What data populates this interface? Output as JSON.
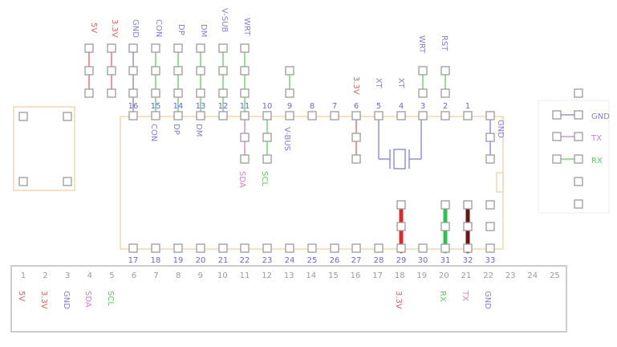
{
  "colors": {
    "outline": "#f2cfa8",
    "frame": "#bfbfbf",
    "pad": "#9b9b9b",
    "number": "#6a6ad0",
    "header_number": "#9a9a9a",
    "red": "#e06060",
    "blue": "#8080dc",
    "green": "#5ccf5c",
    "purple": "#cf7fcf",
    "jumper_red": "#e02828",
    "jumper_green": "#2ec24a",
    "jumper_dark": "#6a1414"
  },
  "top_labels": [
    {
      "label": "5V",
      "color": "red"
    },
    {
      "label": "3.3V",
      "color": "red"
    },
    {
      "label": "GND",
      "color": "blue"
    },
    {
      "label": "CON",
      "color": "blue"
    },
    {
      "label": "DP",
      "color": "blue"
    },
    {
      "label": "DM",
      "color": "blue"
    },
    {
      "label": "V-SUB",
      "color": "blue"
    },
    {
      "label": "WRT",
      "color": "blue"
    }
  ],
  "top_pin_numbers": [
    "16",
    "15",
    "14",
    "13",
    "12",
    "11",
    "10",
    "9",
    "8",
    "7",
    "6",
    "5",
    "4",
    "3",
    "2",
    "1"
  ],
  "top_right_labels": [
    {
      "label": "3.3V",
      "color": "red"
    },
    {
      "label": "XT",
      "color": "blue"
    },
    {
      "label": "XT",
      "color": "blue"
    },
    {
      "label": "WRT",
      "color": "blue"
    },
    {
      "label": "RST",
      "color": "blue"
    }
  ],
  "top_inner_labels": [
    {
      "label": "CON",
      "color": "blue"
    },
    {
      "label": "DP",
      "color": "blue"
    },
    {
      "label": "DM",
      "color": "blue"
    },
    {
      "label": "SDA",
      "color": "purple"
    },
    {
      "label": "SCL",
      "color": "green"
    },
    {
      "label": "V-BUS",
      "color": "blue"
    }
  ],
  "right_inner_label": {
    "label": "GND",
    "color": "blue"
  },
  "connector_labels": [
    {
      "label": "GND",
      "color": "blue"
    },
    {
      "label": "TX",
      "color": "purple"
    },
    {
      "label": "RX",
      "color": "green"
    }
  ],
  "bottom_pin_numbers": [
    "17",
    "18",
    "19",
    "20",
    "21",
    "22",
    "23",
    "24",
    "25",
    "26",
    "27",
    "28",
    "29",
    "30",
    "31",
    "32",
    "33"
  ],
  "header_numbers": [
    "1",
    "2",
    "3",
    "4",
    "5",
    "6",
    "7",
    "8",
    "9",
    "10",
    "11",
    "12",
    "13",
    "14",
    "15",
    "16",
    "17",
    "18",
    "19",
    "20",
    "21",
    "22",
    "23",
    "24",
    "25"
  ],
  "header_labels": [
    {
      "label": "5V",
      "color": "red"
    },
    {
      "label": "3.3V",
      "color": "red"
    },
    {
      "label": "GND",
      "color": "blue"
    },
    {
      "label": "SDA",
      "color": "purple"
    },
    {
      "label": "SCL",
      "color": "green"
    },
    {
      "label": "3.3V",
      "color": "red"
    },
    {
      "label": "RX",
      "color": "green"
    },
    {
      "label": "TX",
      "color": "purple"
    },
    {
      "label": "GND",
      "color": "blue"
    }
  ]
}
